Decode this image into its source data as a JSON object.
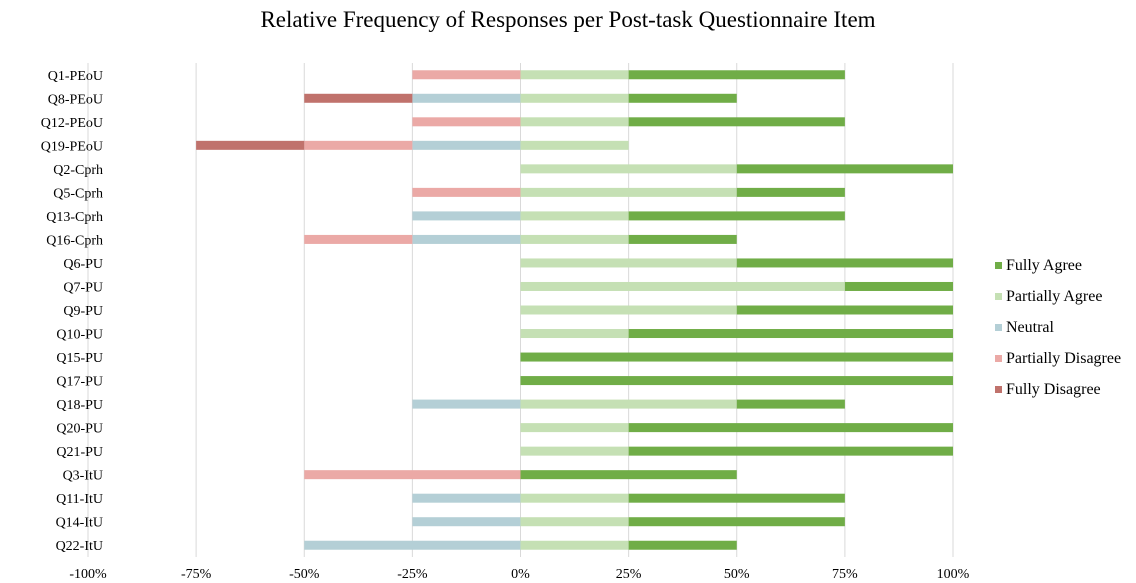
{
  "chart_data": {
    "type": "bar",
    "orientation": "horizontal",
    "stacked": "diverging",
    "title": "Relative Frequency of Responses per Post-task Questionnaire Item",
    "xlim": [
      -100,
      100
    ],
    "x_ticks": [
      "-100%",
      "-75%",
      "-50%",
      "-25%",
      "0%",
      "25%",
      "50%",
      "75%",
      "100%"
    ],
    "grid": true,
    "legend_position": "right",
    "categories": [
      "Q1-PEoU",
      "Q8-PEoU",
      "Q12-PEoU",
      "Q19-PEoU",
      "Q2-Cprh",
      "Q5-Cprh",
      "Q13-Cprh",
      "Q16-Cprh",
      "Q6-PU",
      "Q7-PU",
      "Q9-PU",
      "Q10-PU",
      "Q15-PU",
      "Q17-PU",
      "Q18-PU",
      "Q20-PU",
      "Q21-PU",
      "Q3-ItU",
      "Q11-ItU",
      "Q14-ItU",
      "Q22-ItU"
    ],
    "series": [
      {
        "name": "Fully Agree",
        "side": "positive",
        "color": "#70ad47",
        "values": [
          50,
          25,
          50,
          0,
          50,
          25,
          50,
          25,
          50,
          25,
          50,
          75,
          100,
          100,
          25,
          75,
          75,
          50,
          50,
          50,
          25
        ]
      },
      {
        "name": "Partially Agree",
        "side": "positive",
        "color": "#c5e0b4",
        "values": [
          25,
          25,
          25,
          25,
          50,
          50,
          25,
          25,
          50,
          75,
          50,
          25,
          0,
          0,
          50,
          25,
          25,
          0,
          25,
          25,
          25
        ]
      },
      {
        "name": "Neutral",
        "side": "negative",
        "color": "#b4cfd6",
        "values": [
          0,
          25,
          0,
          25,
          0,
          0,
          25,
          25,
          0,
          0,
          0,
          0,
          0,
          0,
          25,
          0,
          0,
          0,
          25,
          25,
          50
        ]
      },
      {
        "name": "Partially Disagree",
        "side": "negative",
        "color": "#eba9a6",
        "values": [
          25,
          0,
          25,
          25,
          0,
          25,
          0,
          25,
          0,
          0,
          0,
          0,
          0,
          0,
          0,
          0,
          0,
          50,
          0,
          0,
          0
        ]
      },
      {
        "name": "Fully Disagree",
        "side": "negative",
        "color": "#c0726c",
        "values": [
          0,
          25,
          0,
          25,
          0,
          0,
          0,
          0,
          0,
          0,
          0,
          0,
          0,
          0,
          0,
          0,
          0,
          0,
          0,
          0,
          0
        ]
      }
    ],
    "legend_order": [
      "Fully Agree",
      "Partially Agree",
      "Neutral",
      "Partially Disagree",
      "Fully Disagree"
    ]
  }
}
